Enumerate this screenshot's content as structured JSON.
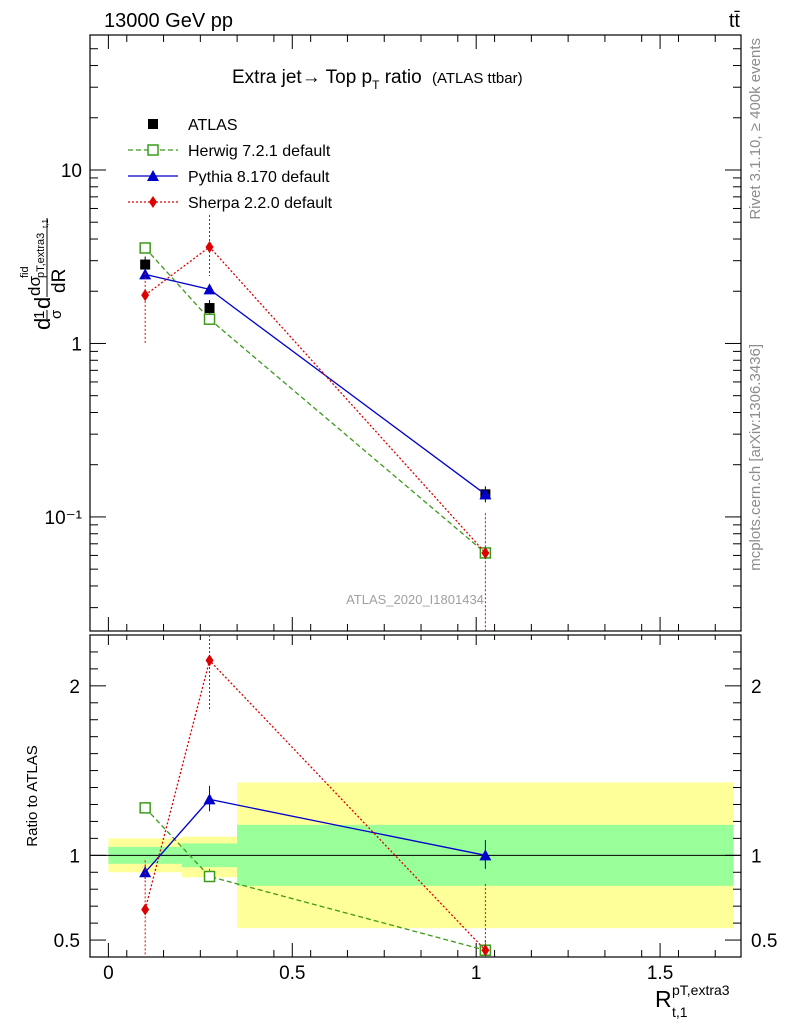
{
  "header": {
    "energy_label": "13000 GeV pp",
    "process_label": "tt̄"
  },
  "side_labels": {
    "rivet": "Rivet 3.1.10, ≥ 400k events",
    "mcplots": "mcplots.cern.ch [arXiv:1306.3436]"
  },
  "watermark": "ATLAS_2020_I1801434",
  "chart_data": {
    "type": "line",
    "title": "Extra jet→ Top p",
    "title_sub": "T",
    "title_tail": " ratio",
    "title_note": "(ATLAS ttbar)",
    "x": [
      0.1,
      0.275,
      1.025
    ],
    "x_bins": [
      [
        0,
        0.2
      ],
      [
        0.2,
        0.35
      ],
      [
        0.35,
        1.7
      ]
    ],
    "xlim": [
      -0.05,
      1.72
    ],
    "xticks": [
      0,
      0.5,
      1,
      1.5
    ],
    "xtick_labels": [
      "0",
      "0.5",
      "1",
      "1.5"
    ],
    "xlabel": "R",
    "xlabel_sup": "pT,extra3",
    "xlabel_sub": "t,1",
    "ylabel_main": "(1/σ) dσ^fid_pT,extra3,t,1 / dR",
    "ylim_main": [
      0.022,
      60
    ],
    "yscale_main": "log",
    "yticks_main": [
      0.1,
      1,
      10
    ],
    "ytick_labels_main": [
      "10⁻¹",
      "1",
      "10"
    ],
    "legend_position": "top-left",
    "series": [
      {
        "name": "ATLAS",
        "color": "#000000",
        "marker": "square-filled",
        "line": "none",
        "values": [
          2.85,
          1.6,
          0.135
        ],
        "ratio": [
          1,
          1,
          1
        ]
      },
      {
        "name": "Herwig 7.2.1 default",
        "color": "#3c9a1a",
        "marker": "square-open",
        "line": "dashed",
        "values": [
          3.55,
          1.38,
          0.062
        ],
        "ratio": [
          1.28,
          0.875,
          0.44
        ],
        "ratio_err": [
          [
            1.26,
            1.31
          ],
          [
            0.83,
            0.92
          ],
          [
            0.37,
            0.5
          ]
        ]
      },
      {
        "name": "Pythia 8.170 default",
        "color": "#0000cc",
        "marker": "triangle",
        "line": "solid",
        "values": [
          2.5,
          2.05,
          0.135
        ],
        "ratio": [
          0.9,
          1.33,
          1.0
        ],
        "ratio_err": [
          [
            0.86,
            0.94
          ],
          [
            1.26,
            1.41
          ],
          [
            0.92,
            1.09
          ]
        ]
      },
      {
        "name": "Sherpa 2.2.0 default",
        "color": "#dd0000",
        "marker": "diamond",
        "line": "dotted",
        "values": [
          1.9,
          3.6,
          0.062
        ],
        "ratio": [
          0.68,
          2.15,
          0.44
        ],
        "ratio_err": [
          [
            0.4,
            0.97
          ],
          [
            1.85,
            2.4
          ],
          [
            0.3,
            0.83
          ]
        ],
        "err_main": [
          [
            1.0,
            2.55
          ],
          [
            2.45,
            5.5
          ],
          [
            0.02,
            0.105
          ]
        ]
      }
    ],
    "ratio_panel": {
      "ylabel": "Ratio to ATLAS",
      "ylim": [
        0.4,
        2.3
      ],
      "yticks": [
        0.5,
        1,
        2
      ],
      "ytick_labels": [
        "0.5",
        "1",
        "2"
      ],
      "band_inner": [
        [
          0.95,
          1.05
        ],
        [
          0.93,
          1.07
        ],
        [
          0.82,
          1.18
        ]
      ],
      "band_outer": [
        [
          0.9,
          1.1
        ],
        [
          0.87,
          1.11
        ],
        [
          0.57,
          1.43
        ]
      ]
    }
  }
}
